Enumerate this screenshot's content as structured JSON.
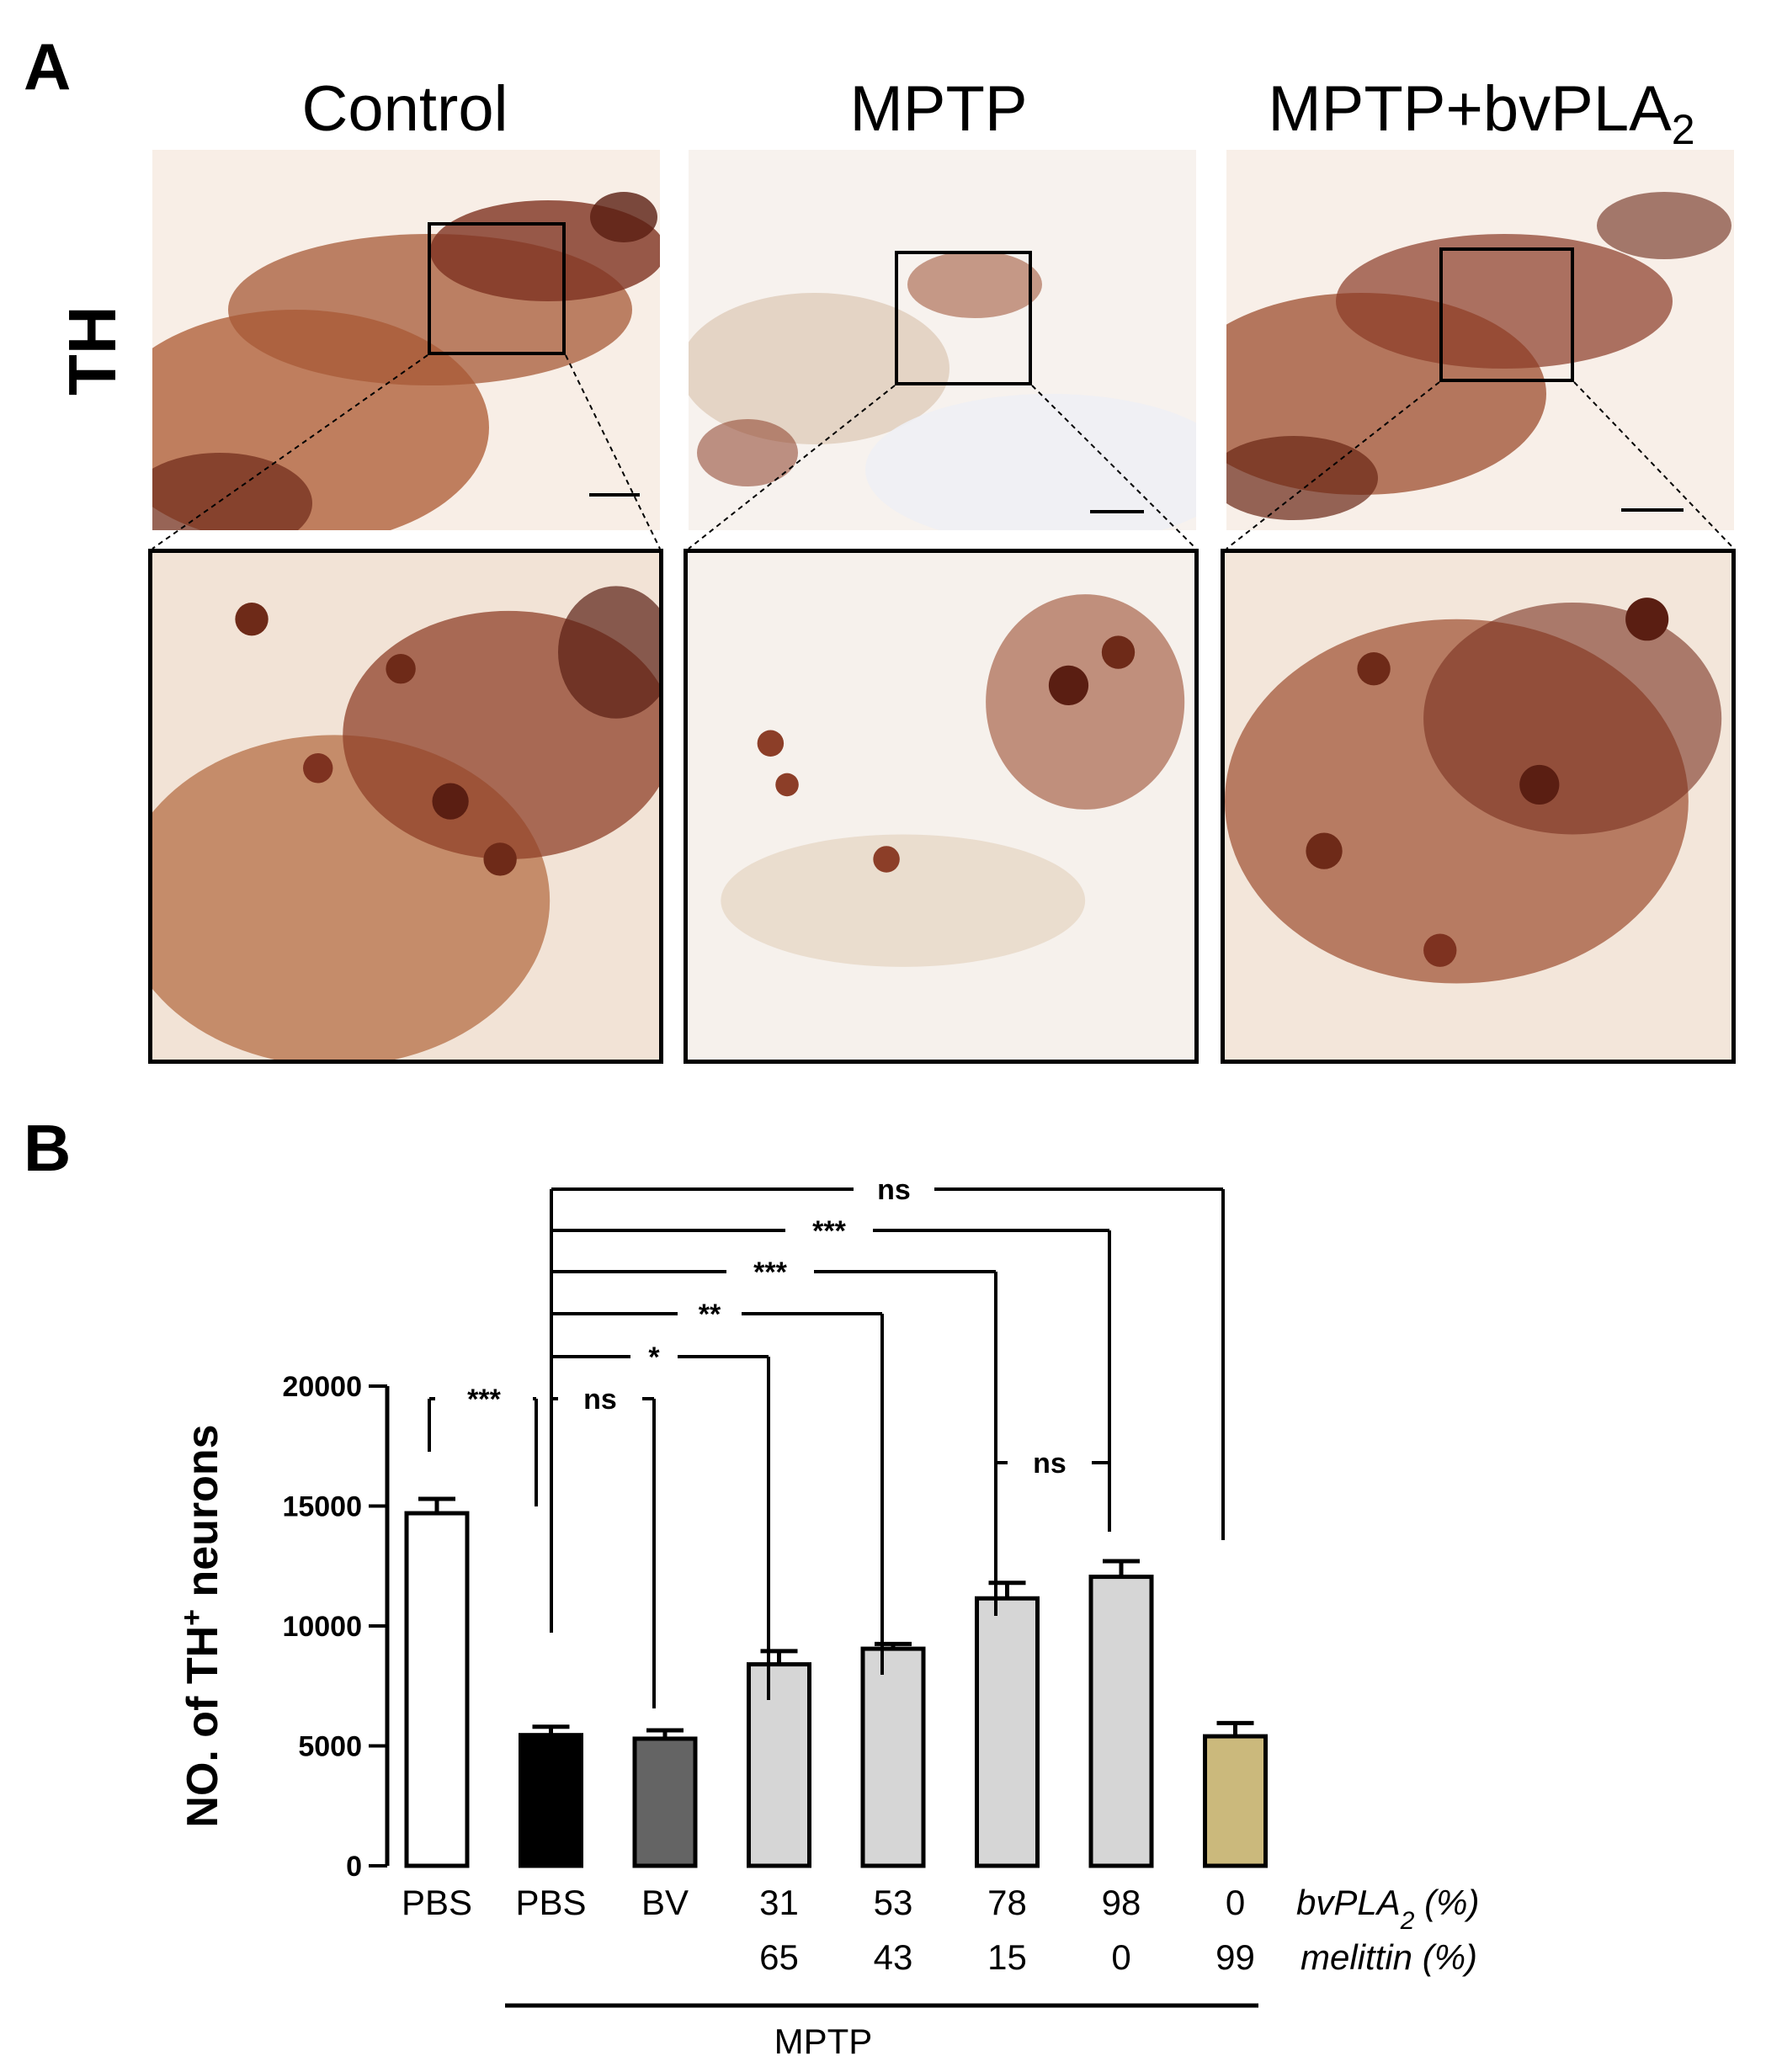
{
  "figure": {
    "panel_a_label": "A",
    "panel_b_label": "B",
    "row_label": "TH",
    "columns": [
      {
        "title": "Control"
      },
      {
        "title": "MPTP"
      },
      {
        "title_main": "MPTP+bvPLA",
        "title_sub": "2"
      }
    ]
  },
  "colors": {
    "stain_dark": "#5a1e12",
    "stain_mid": "#a0583a",
    "stain_light": "#d9b8a0",
    "bar_white": "#ffffff",
    "bar_black": "#000000",
    "bar_darkgray": "#646464",
    "bar_lightgray": "#d6d6d6",
    "bar_tan": "#cbb97c"
  },
  "chart_data": {
    "type": "bar",
    "ylabel_main": "NO. of TH",
    "ylabel_sup": "+",
    "ylabel_tail": " neurons",
    "ylim": [
      0,
      20000
    ],
    "yticks": [
      "0",
      "5000",
      "10000",
      "15000",
      "20000"
    ],
    "grid": false,
    "categories": [
      "PBS",
      "PBS",
      "BV",
      "31/65",
      "53/43",
      "78/15",
      "98/0",
      "0/99"
    ],
    "row1_labels": [
      "PBS",
      "PBS",
      "BV",
      "31",
      "53",
      "78",
      "98",
      "0"
    ],
    "row2_labels": [
      "",
      "",
      "",
      "65",
      "43",
      "15",
      "0",
      "99"
    ],
    "row1_title_main": "bvPLA",
    "row1_title_sub": "2",
    "row1_title_tail": " (%)",
    "row2_title": "melittin (%)",
    "group_label": "MPTP",
    "values": [
      14700,
      5450,
      5300,
      8400,
      9050,
      11150,
      12050,
      5400
    ],
    "errors": [
      600,
      350,
      350,
      550,
      200,
      650,
      650,
      550
    ],
    "bar_colors": [
      "#ffffff",
      "#000000",
      "#646464",
      "#d6d6d6",
      "#d6d6d6",
      "#d6d6d6",
      "#d6d6d6",
      "#cbb97c"
    ],
    "comparisons": [
      {
        "from": 0,
        "to": 1,
        "label": "***"
      },
      {
        "from": 1,
        "to": 2,
        "label": "ns"
      },
      {
        "from": 1,
        "to": 3,
        "label": "*"
      },
      {
        "from": 1,
        "to": 4,
        "label": "**"
      },
      {
        "from": 1,
        "to": 5,
        "label": "***"
      },
      {
        "from": 1,
        "to": 6,
        "label": "***"
      },
      {
        "from": 1,
        "to": 7,
        "label": "ns"
      },
      {
        "from": 5,
        "to": 6,
        "label": "ns"
      }
    ]
  }
}
